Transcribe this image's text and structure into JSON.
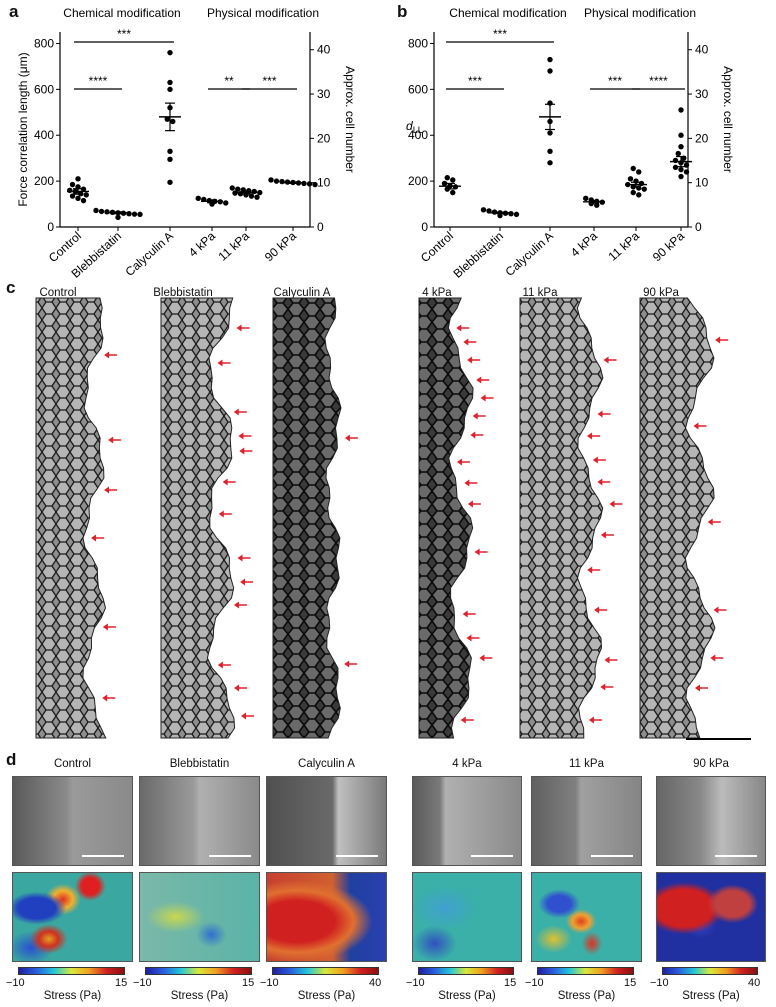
{
  "panel_letters": {
    "a": "a",
    "b": "b",
    "c": "c",
    "d": "d"
  },
  "chart_data": [
    {
      "type": "scatter",
      "panel": "a",
      "group_labels": [
        "Chemical modification",
        "Physical modification"
      ],
      "ylabel": "Force correlation length (μm)",
      "ylabel_right": "Approx. cell number",
      "ylim": [
        0,
        850
      ],
      "yticks": [
        "0",
        "200",
        "400",
        "600",
        "800"
      ],
      "ylim_right": [
        0,
        44
      ],
      "yticks_right": [
        "0",
        "10",
        "20",
        "30",
        "40"
      ],
      "categories": [
        "Control",
        "Blebbistatin",
        "Calyculin A",
        "4 kPa",
        "11 kPa",
        "90 kPa"
      ],
      "points": [
        [
          210,
          185,
          175,
          165,
          160,
          155,
          145,
          140,
          135,
          125,
          115
        ],
        [
          72,
          68,
          66,
          64,
          62,
          60,
          58,
          56,
          55,
          42
        ],
        [
          760,
          630,
          600,
          520,
          470,
          460,
          330,
          295,
          195
        ],
        [
          125,
          120,
          115,
          112,
          110,
          105,
          100
        ],
        [
          170,
          165,
          162,
          158,
          155,
          150,
          148,
          145,
          140,
          135,
          130
        ],
        [
          205,
          200,
          198,
          196,
          194,
          192,
          190,
          188,
          185
        ]
      ],
      "means": [
        155,
        62,
        480,
        112,
        150,
        193
      ],
      "sem": [
        12,
        4,
        60,
        6,
        6,
        3
      ],
      "significance": [
        {
          "label": "***",
          "from": 0,
          "to": 2
        },
        {
          "label": "****",
          "from": 0,
          "to": 1
        },
        {
          "label": "**",
          "from": 3,
          "to": 4
        },
        {
          "label": "***",
          "from": 4,
          "to": 5
        }
      ]
    },
    {
      "type": "scatter",
      "panel": "b",
      "group_labels": [
        "Chemical modification",
        "Physical modification"
      ],
      "ylabel": "d",
      "ylabel_sub": "LL",
      "ylabel_right": "Approx. cell number",
      "ylim": [
        0,
        850
      ],
      "yticks": [
        "0",
        "200",
        "400",
        "600",
        "800"
      ],
      "ylim_right": [
        0,
        44
      ],
      "yticks_right": [
        "0",
        "10",
        "20",
        "30",
        "40"
      ],
      "categories": [
        "Control",
        "Blebbistatin",
        "Calyculin A",
        "4 kPa",
        "11 kPa",
        "90 kPa"
      ],
      "points": [
        [
          215,
          205,
          190,
          180,
          175,
          165,
          150
        ],
        [
          75,
          70,
          65,
          62,
          60,
          58,
          55,
          50
        ],
        [
          730,
          680,
          540,
          460,
          410,
          330,
          280
        ],
        [
          125,
          118,
          112,
          108,
          102,
          95
        ],
        [
          255,
          240,
          210,
          200,
          190,
          185,
          175,
          170,
          165,
          150,
          140
        ],
        [
          510,
          400,
          350,
          320,
          300,
          290,
          280,
          270,
          260,
          250,
          240,
          220
        ]
      ],
      "means": [
        178,
        62,
        480,
        110,
        185,
        285
      ],
      "sem": [
        12,
        3,
        55,
        5,
        10,
        22
      ],
      "significance": [
        {
          "label": "***",
          "from": 0,
          "to": 2
        },
        {
          "label": "***",
          "from": 0,
          "to": 1
        },
        {
          "label": "***",
          "from": 3,
          "to": 4
        },
        {
          "label": "****",
          "from": 4,
          "to": 5
        }
      ]
    }
  ],
  "panel_c": {
    "labels": [
      "Control",
      "Blebbistatin",
      "Calyculin A",
      "4 kPa",
      "11 kPa",
      "90 kPa"
    ]
  },
  "panel_d": {
    "labels": [
      "Control",
      "Blebbistatin",
      "Calyculin A",
      "4 kPa",
      "11 kPa",
      "90 kPa"
    ],
    "colorbars": [
      {
        "min": "−10",
        "max": "15",
        "title": "Stress (Pa)"
      },
      {
        "min": "−10",
        "max": "15",
        "title": "Stress (Pa)"
      },
      {
        "min": "−10",
        "max": "40",
        "title": "Stress (Pa)"
      },
      {
        "min": "−10",
        "max": "15",
        "title": "Stress (Pa)"
      },
      {
        "min": "−10",
        "max": "15",
        "title": "Stress (Pa)"
      },
      {
        "min": "−10",
        "max": "40",
        "title": "Stress (Pa)"
      }
    ]
  },
  "colors": {
    "arrow": "#e0202a",
    "dot": "#000000"
  }
}
